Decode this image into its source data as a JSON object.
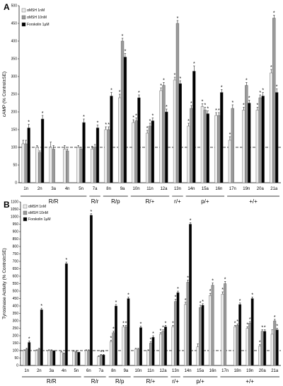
{
  "chart_data": [
    {
      "type": "bar",
      "panel_label": "A",
      "ylabel": "cAMP (% Control±SE)",
      "ylim": [
        0,
        500
      ],
      "yticks": [
        0,
        50,
        100,
        150,
        200,
        250,
        300,
        350,
        400,
        450,
        500
      ],
      "reference_line": 100,
      "categories": [
        "1n",
        "2n",
        "3a",
        "4n",
        "5n",
        "7a",
        "8n",
        "9a",
        "10n",
        "11n",
        "12a",
        "13n",
        "14n",
        "15a",
        "16n",
        "17n",
        "19n",
        "20a",
        "21a"
      ],
      "series": [
        {
          "name": "αMSH 1nM",
          "color": "#ececec",
          "values": [
            110,
            100,
            100,
            95,
            100,
            95,
            150,
            240,
            170,
            140,
            260,
            290,
            160,
            215,
            190,
            120,
            205,
            205,
            310
          ],
          "errors": [
            10,
            5,
            15,
            10,
            5,
            8,
            8,
            10,
            8,
            8,
            8,
            8,
            8,
            8,
            8,
            10,
            8,
            8,
            10
          ]
        },
        {
          "name": "αMSH 10nM",
          "color": "#9a9a9a",
          "values": [
            110,
            85,
            95,
            90,
            95,
            100,
            150,
            400,
            175,
            160,
            275,
            450,
            210,
            205,
            190,
            210,
            275,
            240,
            465
          ],
          "errors": [
            10,
            5,
            10,
            5,
            5,
            8,
            8,
            8,
            8,
            8,
            8,
            8,
            8,
            8,
            8,
            10,
            8,
            8,
            8
          ]
        },
        {
          "name": "Forskolin 1µM",
          "color": "#000000",
          "values": [
            155,
            180,
            0,
            0,
            170,
            155,
            245,
            355,
            240,
            175,
            200,
            280,
            315,
            195,
            255,
            0,
            225,
            245,
            255
          ],
          "errors": [
            10,
            10,
            0,
            0,
            10,
            8,
            10,
            10,
            8,
            8,
            8,
            8,
            15,
            8,
            8,
            0,
            8,
            10,
            10
          ]
        }
      ],
      "significant": [
        [
          false,
          false,
          false,
          false,
          false,
          false,
          true,
          true,
          true,
          true,
          true,
          true,
          true,
          true,
          true,
          true,
          true,
          true,
          true
        ],
        [
          false,
          false,
          false,
          false,
          false,
          false,
          true,
          true,
          true,
          true,
          true,
          true,
          true,
          true,
          true,
          true,
          true,
          true,
          true
        ],
        [
          true,
          true,
          false,
          false,
          true,
          true,
          true,
          true,
          true,
          true,
          true,
          true,
          true,
          true,
          true,
          false,
          true,
          true,
          true
        ]
      ],
      "groups": [
        {
          "label": "R/R",
          "categories": [
            "1n",
            "2n",
            "3a",
            "4n",
            "5n"
          ]
        },
        {
          "label": "R/r",
          "categories": [
            "7a"
          ]
        },
        {
          "label": "R/p",
          "categories": [
            "8n",
            "9a"
          ]
        },
        {
          "label": "R/+",
          "categories": [
            "10n",
            "11n",
            "12a"
          ]
        },
        {
          "label": "r/+",
          "categories": [
            "13n"
          ]
        },
        {
          "label": "p/+",
          "categories": [
            "14n",
            "15a",
            "16n"
          ]
        },
        {
          "label": "+/+",
          "categories": [
            "17n",
            "19n",
            "20a",
            "21a"
          ]
        }
      ]
    },
    {
      "type": "bar",
      "panel_label": "B",
      "ylabel": "Tyrosinase Activity (% Control±SE)",
      "ylim": [
        0,
        1100
      ],
      "yticks": [
        0,
        50,
        100,
        150,
        200,
        250,
        300,
        350,
        400,
        450,
        500,
        550,
        600,
        650,
        700,
        750,
        800,
        850,
        900,
        950,
        1000,
        1050,
        1100
      ],
      "reference_line": 100,
      "categories": [
        "1n",
        "2n",
        "3a",
        "4n",
        "5n",
        "6n",
        "7a",
        "8n",
        "9a",
        "10n",
        "11n",
        "12a",
        "13n",
        "14n",
        "15a",
        "16n",
        "17n",
        "18n",
        "19n",
        "20a",
        "21a"
      ],
      "series": [
        {
          "name": "αMSH 1nM",
          "color": "#ececec",
          "values": [
            100,
            100,
            100,
            90,
            95,
            100,
            60,
            160,
            260,
            110,
            100,
            210,
            260,
            410,
            125,
            470,
            480,
            260,
            250,
            130,
            210
          ],
          "errors": [
            5,
            5,
            5,
            5,
            5,
            5,
            5,
            10,
            10,
            5,
            5,
            10,
            10,
            15,
            20,
            15,
            15,
            10,
            10,
            10,
            30
          ]
        },
        {
          "name": "αMSH 10nM",
          "color": "#9a9a9a",
          "values": [
            110,
            110,
            100,
            80,
            90,
            100,
            70,
            220,
            260,
            110,
            150,
            230,
            430,
            560,
            390,
            540,
            550,
            270,
            285,
            230,
            300
          ],
          "errors": [
            5,
            5,
            5,
            5,
            5,
            5,
            5,
            10,
            10,
            5,
            10,
            10,
            15,
            15,
            15,
            15,
            15,
            10,
            10,
            10,
            10
          ]
        },
        {
          "name": "Forskolin 1µM",
          "color": "#000000",
          "values": [
            155,
            375,
            100,
            685,
            90,
            1010,
            70,
            400,
            450,
            255,
            190,
            260,
            490,
            950,
            405,
            0,
            0,
            410,
            450,
            230,
            240
          ],
          "errors": [
            10,
            10,
            0,
            10,
            0,
            10,
            5,
            10,
            10,
            10,
            10,
            10,
            10,
            10,
            10,
            0,
            0,
            10,
            10,
            10,
            10
          ]
        }
      ],
      "significant": [
        [
          false,
          false,
          false,
          false,
          false,
          false,
          false,
          true,
          true,
          false,
          false,
          true,
          true,
          true,
          false,
          true,
          true,
          true,
          true,
          true,
          false
        ],
        [
          false,
          false,
          false,
          false,
          false,
          false,
          true,
          true,
          true,
          false,
          true,
          true,
          true,
          true,
          true,
          true,
          true,
          true,
          true,
          true,
          true
        ],
        [
          true,
          true,
          false,
          true,
          false,
          true,
          true,
          true,
          true,
          true,
          true,
          true,
          true,
          true,
          true,
          false,
          false,
          true,
          true,
          true,
          true
        ]
      ],
      "groups": [
        {
          "label": "R/R",
          "categories": [
            "1n",
            "2n",
            "3a",
            "4n",
            "5n"
          ]
        },
        {
          "label": "R/r",
          "categories": [
            "6n",
            "7a"
          ]
        },
        {
          "label": "R/p",
          "categories": [
            "8n",
            "9a"
          ]
        },
        {
          "label": "R/+",
          "categories": [
            "10n",
            "11n",
            "12a"
          ]
        },
        {
          "label": "r/+",
          "categories": [
            "13n"
          ]
        },
        {
          "label": "p/+",
          "categories": [
            "14n",
            "15a",
            "16n"
          ]
        },
        {
          "label": "+/+",
          "categories": [
            "17n",
            "18n",
            "19n",
            "20a",
            "21a"
          ]
        }
      ]
    }
  ]
}
